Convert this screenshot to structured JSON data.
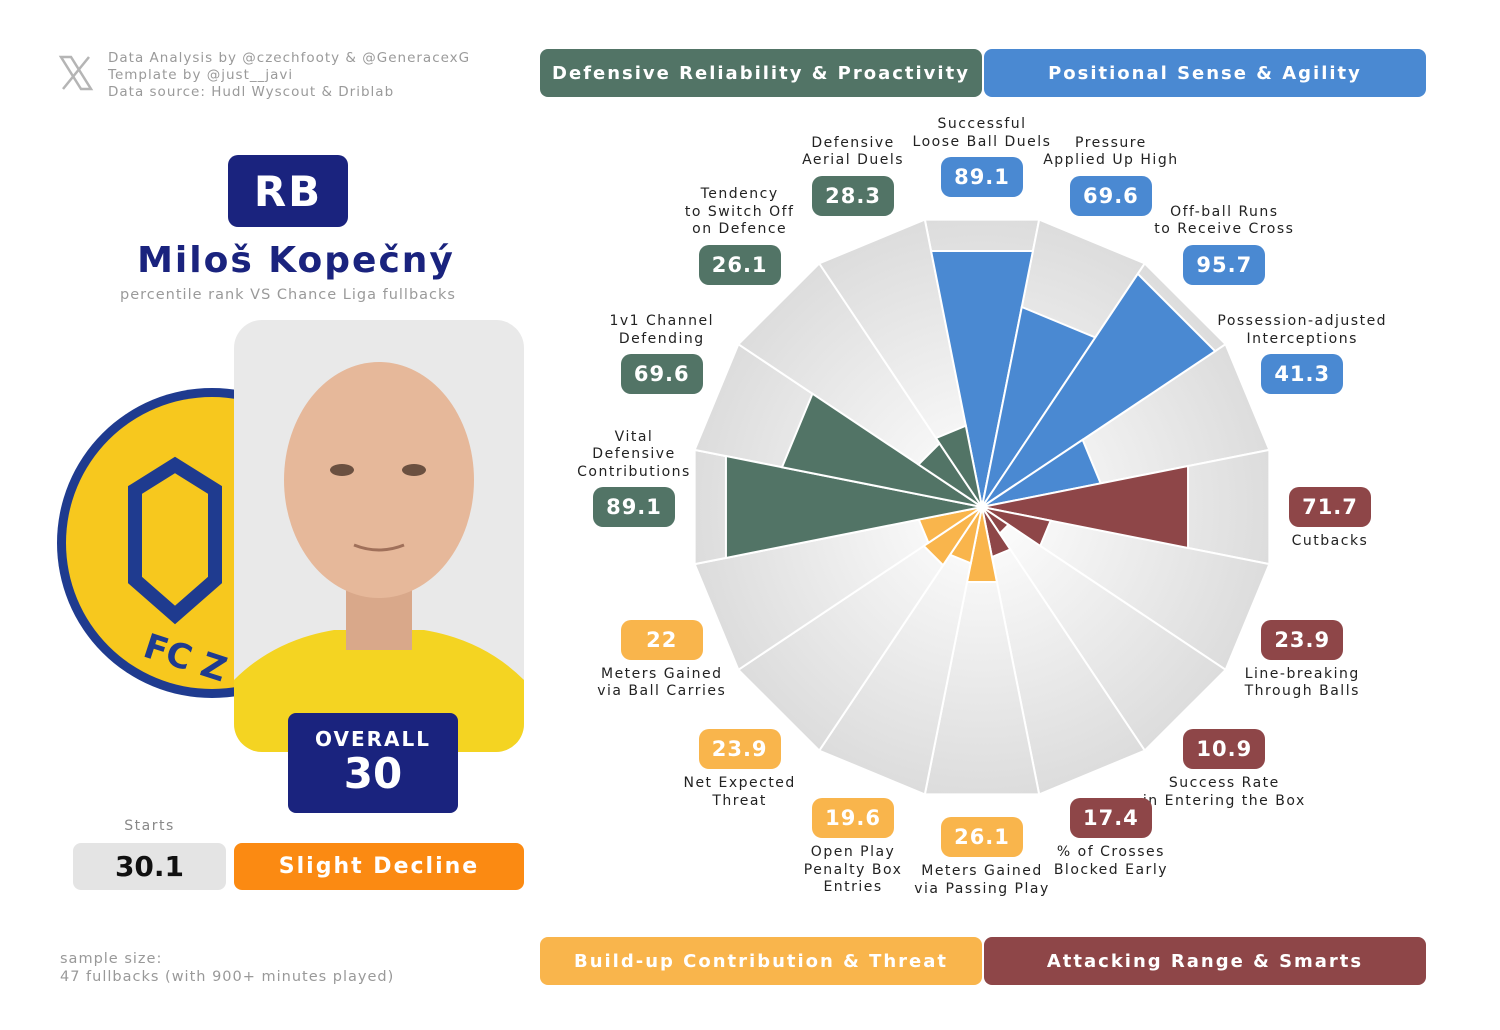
{
  "credits": [
    "Data Analysis by @czechfooty & @GeneracexG",
    "Template by @just__javi",
    "Data source: Hudl Wyscout & Driblab"
  ],
  "player": {
    "position": "RB",
    "name": "Miloš Kopečný",
    "subtitle": "percentile rank VS Chance Liga fullbacks",
    "club_text": "FC Z",
    "overall_label": "OVERALL",
    "overall": 30,
    "starts_label": "Starts",
    "starts": 30.1,
    "trend": "Slight Decline"
  },
  "sample": [
    "sample size:",
    "47 fullbacks (with 900+ minutes played)"
  ],
  "chart_data": {
    "type": "pizza",
    "categories": [
      "Successful\nLoose Ball Duels",
      "Pressure\nApplied Up High",
      "Off-ball Runs\nto Receive Cross",
      "Possession-adjusted\nInterceptions",
      "Cutbacks",
      "Line-breaking\nThrough Balls",
      "Success Rate\nin Entering the Box",
      "% of Crosses\nBlocked Early",
      "Meters Gained\nvia Passing Play",
      "Open Play\nPenalty Box\nEntries",
      "Net Expected\nThreat",
      "Meters Gained\nvia Ball Carries",
      "Vital\nDefensive\nContributions",
      "1v1 Channel\nDefending",
      "Tendency\nto Switch Off\non Defence",
      "Defensive\nAerial Duels"
    ],
    "series": [
      {
        "name": "Defensive Reliability & Proactivity",
        "color": "#527466",
        "values": [
          null,
          null,
          null,
          null,
          null,
          null,
          null,
          null,
          null,
          null,
          null,
          null,
          89.1,
          69.6,
          26.1,
          28.3
        ]
      },
      {
        "name": "Positional Sense & Agility",
        "color": "#4a89d2",
        "values": [
          89.1,
          69.6,
          95.7,
          41.3,
          null,
          null,
          null,
          null,
          null,
          null,
          null,
          null,
          null,
          null,
          null,
          null
        ]
      },
      {
        "name": "Build-up Contribution & Threat",
        "color": "#f9b54c",
        "values": [
          null,
          null,
          null,
          null,
          null,
          null,
          null,
          null,
          26.1,
          19.6,
          23.9,
          22,
          null,
          null,
          null,
          null
        ]
      },
      {
        "name": "Attacking Range & Smarts",
        "color": "#8e4648",
        "values": [
          null,
          null,
          null,
          null,
          71.7,
          23.9,
          10.9,
          17.4,
          null,
          null,
          null,
          null,
          null,
          null,
          null,
          null
        ]
      }
    ],
    "ylim": [
      0,
      100
    ]
  }
}
